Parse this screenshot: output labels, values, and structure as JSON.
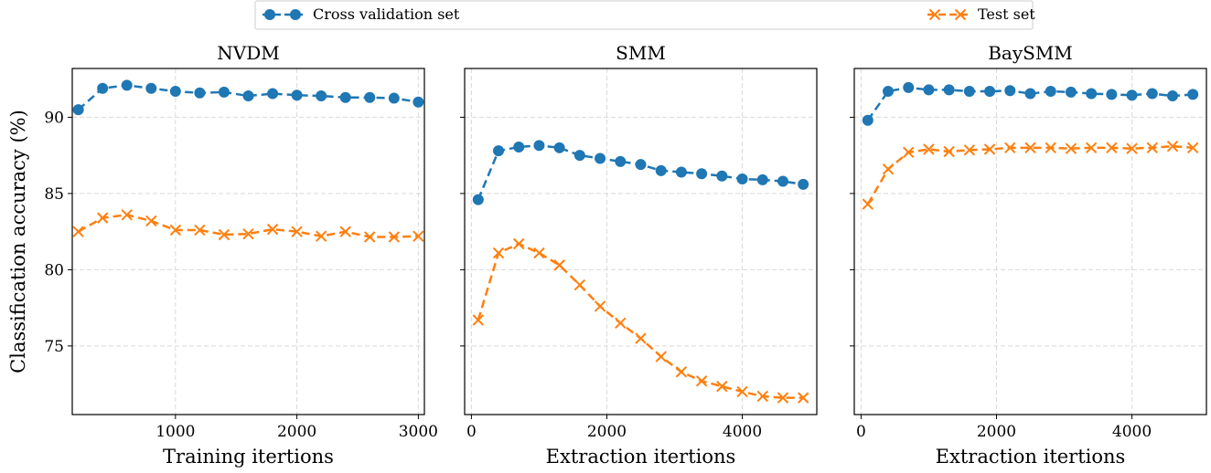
{
  "legend": {
    "placement": "top",
    "items": [
      {
        "label": "Cross validation set",
        "color": "#1f77b4",
        "marker": "circle",
        "line": "dashed"
      },
      {
        "label": "Test set",
        "color": "#ff7f0e",
        "marker": "x",
        "line": "dashed"
      }
    ]
  },
  "shared_ylabel": "Classification accuracy (%)",
  "chart_data": [
    {
      "type": "line",
      "title": "NVDM",
      "xlabel": "Training itertions",
      "ylabel": "Classification accuracy (%)",
      "xlim": [
        150,
        3050
      ],
      "ylim": [
        70.5,
        93.2
      ],
      "xticks": [
        1000,
        2000,
        3000
      ],
      "yticks": [
        75,
        80,
        85,
        90
      ],
      "grid": true,
      "x": [
        200,
        400,
        600,
        800,
        1000,
        1200,
        1400,
        1600,
        1800,
        2000,
        2200,
        2400,
        2600,
        2800,
        3000
      ],
      "series": [
        {
          "name": "Cross validation set",
          "values": [
            90.5,
            91.9,
            92.1,
            91.9,
            91.7,
            91.6,
            91.65,
            91.4,
            91.55,
            91.45,
            91.4,
            91.3,
            91.3,
            91.25,
            91.0
          ]
        },
        {
          "name": "Test set",
          "values": [
            82.5,
            83.4,
            83.6,
            83.2,
            82.6,
            82.6,
            82.3,
            82.35,
            82.65,
            82.5,
            82.2,
            82.5,
            82.15,
            82.15,
            82.2
          ]
        }
      ]
    },
    {
      "type": "line",
      "title": "SMM",
      "xlabel": "Extraction itertions",
      "ylabel": "",
      "xlim": [
        -100,
        5100
      ],
      "ylim": [
        70.5,
        93.2
      ],
      "xticks": [
        0,
        2000,
        4000
      ],
      "yticks": [
        75,
        80,
        85,
        90
      ],
      "grid": true,
      "x": [
        100,
        400,
        700,
        1000,
        1300,
        1600,
        1900,
        2200,
        2500,
        2800,
        3100,
        3400,
        3700,
        4000,
        4300,
        4600,
        4900
      ],
      "series": [
        {
          "name": "Cross validation set",
          "values": [
            84.6,
            87.8,
            88.05,
            88.15,
            88.0,
            87.5,
            87.3,
            87.1,
            86.9,
            86.5,
            86.4,
            86.3,
            86.15,
            85.95,
            85.9,
            85.8,
            85.6
          ]
        },
        {
          "name": "Test set",
          "values": [
            76.7,
            81.1,
            81.7,
            81.1,
            80.3,
            79.0,
            77.6,
            76.5,
            75.5,
            74.3,
            73.3,
            72.7,
            72.35,
            72.0,
            71.7,
            71.6,
            71.6
          ]
        }
      ]
    },
    {
      "type": "line",
      "title": "BaySMM",
      "xlabel": "Extraction itertions",
      "ylabel": "",
      "xlim": [
        -100,
        5100
      ],
      "ylim": [
        70.5,
        93.2
      ],
      "xticks": [
        0,
        2000,
        4000
      ],
      "yticks": [
        75,
        80,
        85,
        90
      ],
      "grid": true,
      "x": [
        100,
        400,
        700,
        1000,
        1300,
        1600,
        1900,
        2200,
        2500,
        2800,
        3100,
        3400,
        3700,
        4000,
        4300,
        4600,
        4900
      ],
      "series": [
        {
          "name": "Cross validation set",
          "values": [
            89.8,
            91.7,
            91.95,
            91.8,
            91.8,
            91.7,
            91.7,
            91.75,
            91.55,
            91.7,
            91.65,
            91.55,
            91.5,
            91.45,
            91.55,
            91.4,
            91.5
          ]
        },
        {
          "name": "Test set",
          "values": [
            84.3,
            86.6,
            87.7,
            87.9,
            87.75,
            87.85,
            87.9,
            88.0,
            88.0,
            88.0,
            87.95,
            88.0,
            88.0,
            87.95,
            88.0,
            88.1,
            88.0
          ]
        }
      ]
    }
  ]
}
